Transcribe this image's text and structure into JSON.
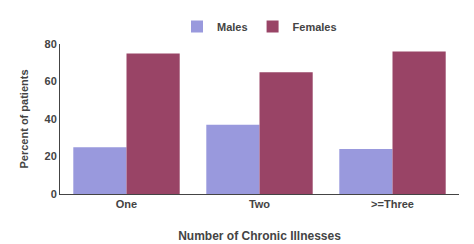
{
  "chart_data": {
    "type": "bar",
    "categories": [
      "One",
      "Two",
      ">=Three"
    ],
    "series": [
      {
        "name": "Males",
        "color": "#9999dd",
        "values": [
          25,
          37,
          24
        ]
      },
      {
        "name": "Females",
        "color": "#994466",
        "values": [
          75,
          65,
          76
        ]
      }
    ],
    "xlabel": "Number of Chronic Illnesses",
    "ylabel": "Percent of patients",
    "ylim": [
      0,
      80
    ],
    "yticks": [
      0,
      20,
      40,
      60,
      80
    ],
    "grid": false,
    "legend": "top"
  }
}
